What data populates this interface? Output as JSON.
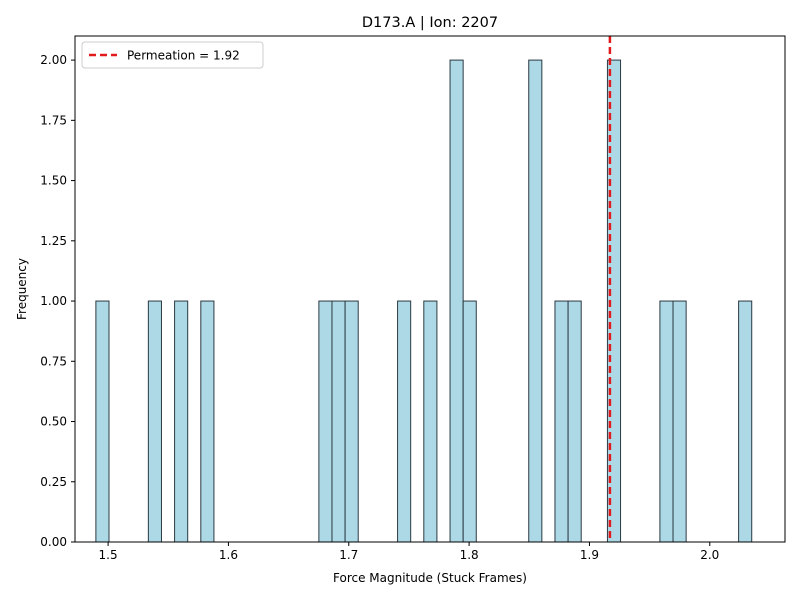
{
  "chart_data": {
    "type": "bar",
    "title": "D173.A | Ion: 2207",
    "xlabel": "Force Magnitude (Stuck Frames)",
    "ylabel": "Frequency",
    "xlim": [
      1.4725,
      2.0625
    ],
    "ylim": [
      0,
      2.1
    ],
    "bin_width": 0.0109,
    "bins": [
      {
        "x": 1.4953,
        "value": 1
      },
      {
        "x": 1.5389,
        "value": 1
      },
      {
        "x": 1.5607,
        "value": 1
      },
      {
        "x": 1.5825,
        "value": 1
      },
      {
        "x": 1.6806,
        "value": 1
      },
      {
        "x": 1.6915,
        "value": 1
      },
      {
        "x": 1.7024,
        "value": 1
      },
      {
        "x": 1.746,
        "value": 1
      },
      {
        "x": 1.7678,
        "value": 1
      },
      {
        "x": 1.7896,
        "value": 2
      },
      {
        "x": 1.8005,
        "value": 1
      },
      {
        "x": 1.855,
        "value": 2
      },
      {
        "x": 1.8768,
        "value": 1
      },
      {
        "x": 1.8877,
        "value": 1
      },
      {
        "x": 1.9204,
        "value": 2
      },
      {
        "x": 1.964,
        "value": 1
      },
      {
        "x": 1.9749,
        "value": 1
      },
      {
        "x": 2.0294,
        "value": 1
      }
    ],
    "x_ticks": [
      1.5,
      1.6,
      1.7,
      1.8,
      1.9,
      2.0
    ],
    "x_tick_labels": [
      "1.5",
      "1.6",
      "1.7",
      "1.8",
      "1.9",
      "2.0"
    ],
    "y_ticks": [
      0,
      0.25,
      0.5,
      0.75,
      1.0,
      1.25,
      1.5,
      1.75,
      2.0
    ],
    "y_tick_labels": [
      "0.00",
      "0.25",
      "0.50",
      "0.75",
      "1.00",
      "1.25",
      "1.50",
      "1.75",
      "2.00"
    ],
    "vline": {
      "x": 1.917,
      "label": "Permeation = 1.92",
      "color": "#e31a1c"
    },
    "bar_color": "#add8e6",
    "bar_edge_color": "#2b3a42",
    "legend_position": "top-left",
    "grid": false
  }
}
